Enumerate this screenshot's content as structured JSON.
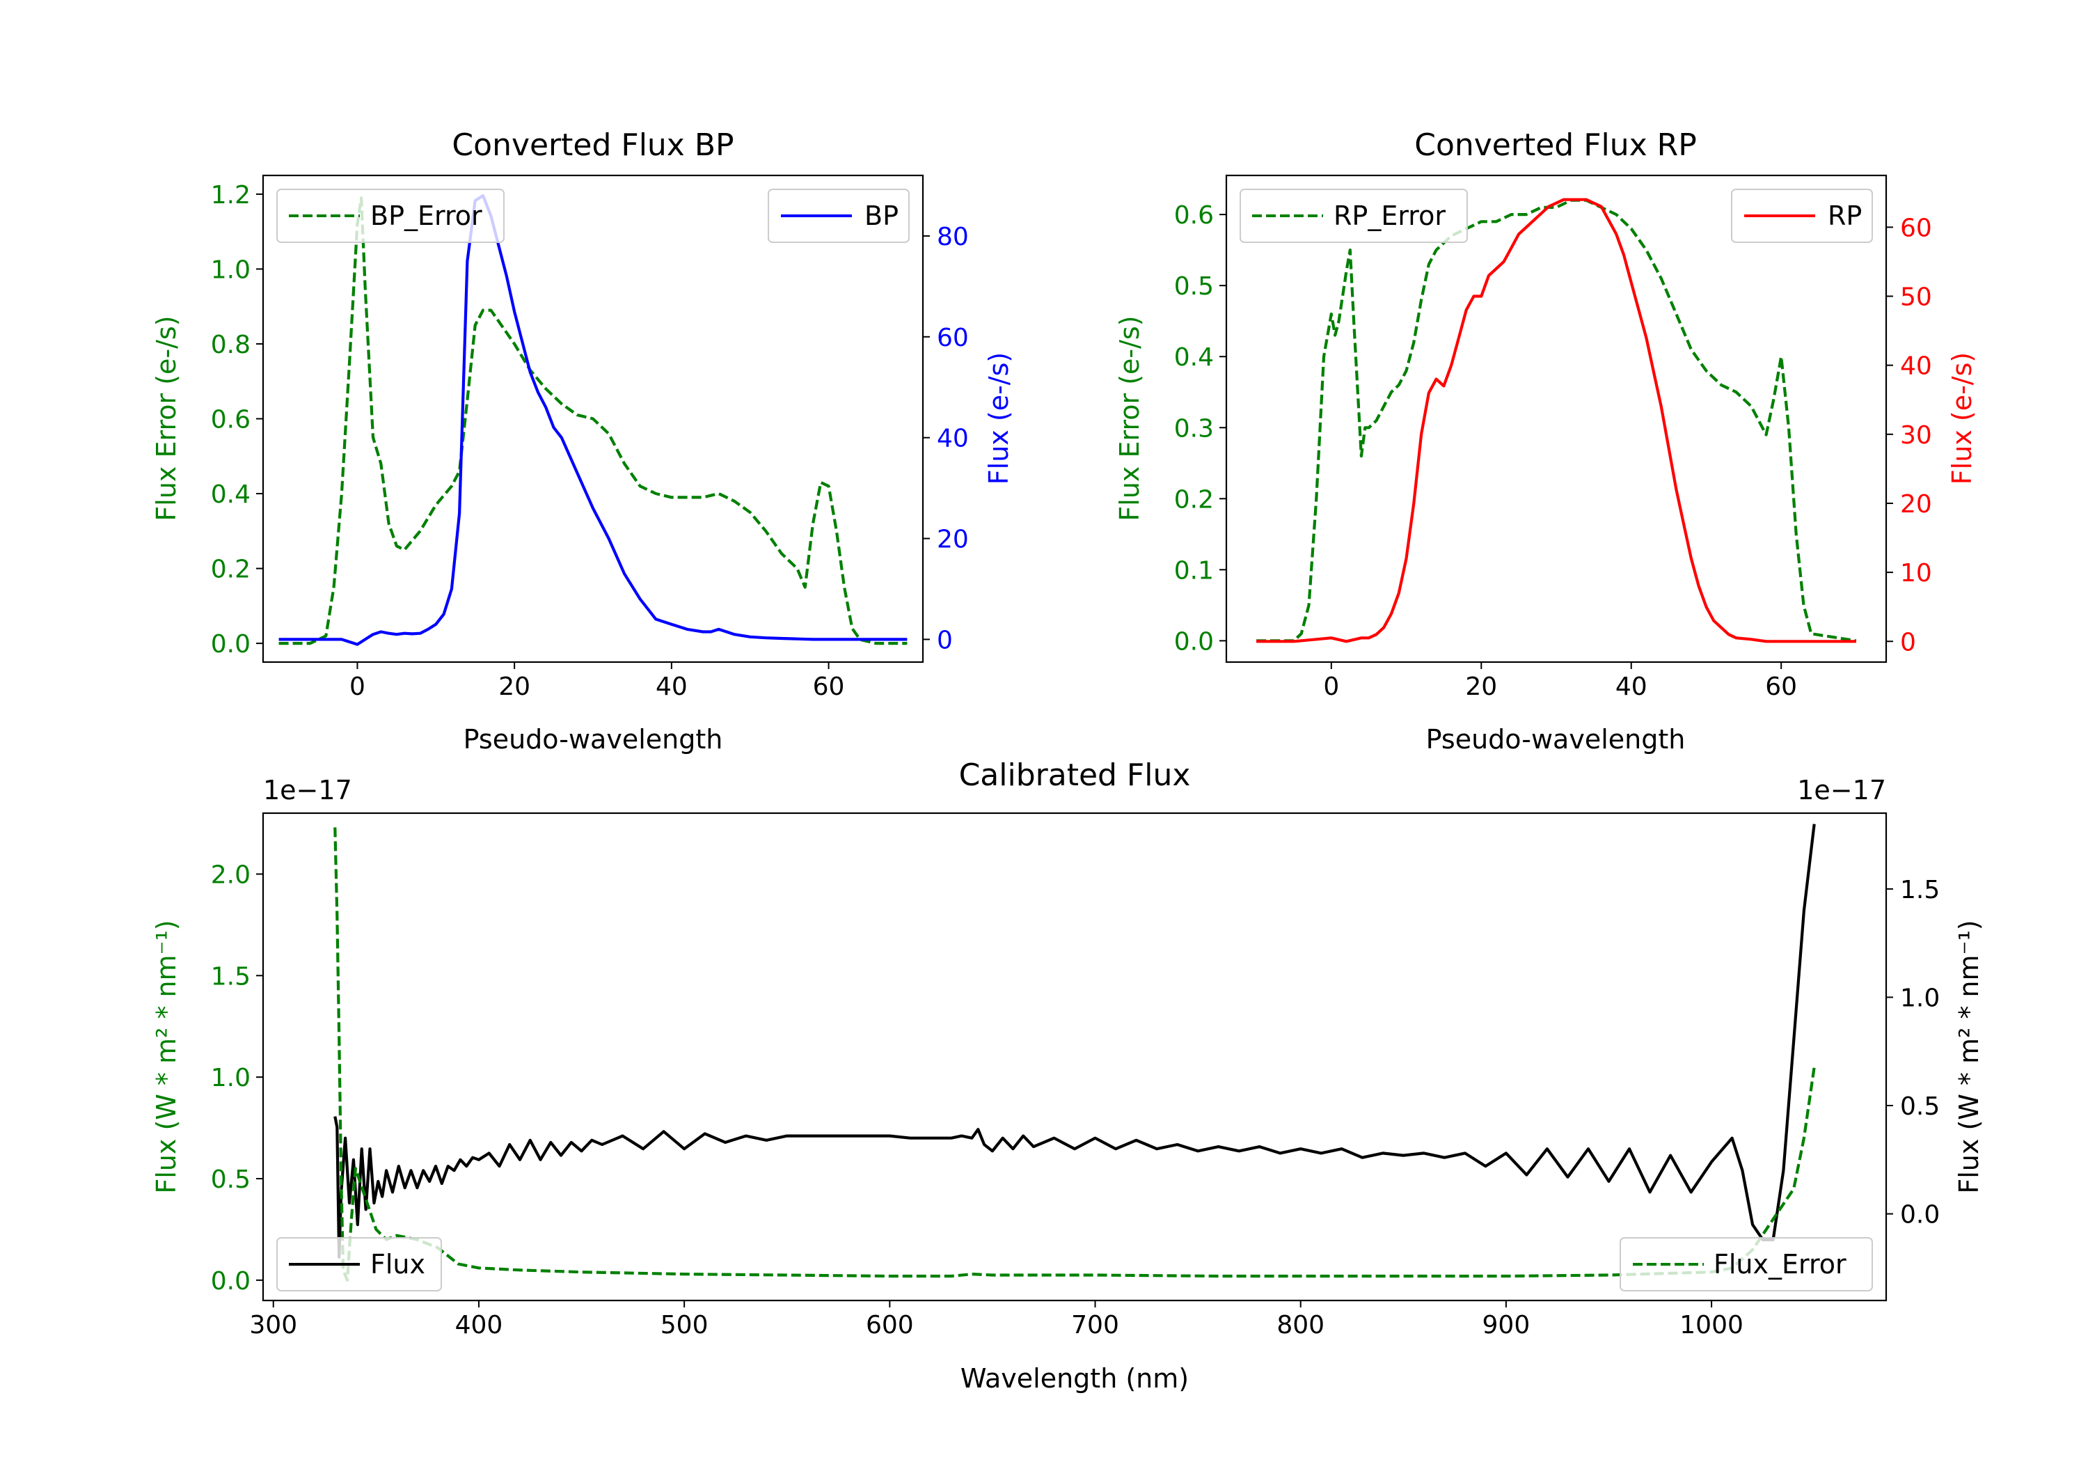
{
  "chart_data": [
    {
      "type": "line",
      "title": "Converted Flux BP",
      "xlabel": "Pseudo-wavelength",
      "ylabel_left": "Flux Error (e-/s)",
      "ylabel_right": "Flux (e-/s)",
      "xlim": [
        -12,
        72
      ],
      "ylim_left": [
        -0.05,
        1.25
      ],
      "ylim_right": [
        -4.5,
        92
      ],
      "x_ticks": [
        0,
        20,
        40,
        60
      ],
      "y_ticks_left": [
        "0.0",
        "0.2",
        "0.4",
        "0.6",
        "0.8",
        "1.0",
        "1.2"
      ],
      "y_ticks_right": [
        "0",
        "20",
        "40",
        "60",
        "80"
      ],
      "legend_left": "top-left",
      "legend_right": "top-right",
      "series": [
        {
          "name": "BP_Error",
          "axis": "left",
          "style": "dashed",
          "color": "#008000",
          "x": [
            -10,
            -6,
            -4,
            -3,
            -2,
            -1,
            0,
            0.5,
            1,
            2,
            3,
            4,
            5,
            6,
            8,
            10,
            12,
            13,
            14,
            15,
            16,
            17,
            18,
            20,
            22,
            24,
            26,
            28,
            30,
            32,
            34,
            36,
            38,
            40,
            42,
            44,
            46,
            48,
            50,
            52,
            54,
            56,
            57,
            58,
            59,
            60,
            61,
            62,
            63,
            64,
            66,
            70
          ],
          "values": [
            0,
            0,
            0.02,
            0.15,
            0.4,
            0.75,
            1.12,
            1.19,
            0.95,
            0.55,
            0.48,
            0.32,
            0.26,
            0.25,
            0.3,
            0.37,
            0.42,
            0.46,
            0.65,
            0.85,
            0.89,
            0.89,
            0.86,
            0.8,
            0.73,
            0.68,
            0.64,
            0.61,
            0.6,
            0.56,
            0.48,
            0.42,
            0.4,
            0.39,
            0.39,
            0.39,
            0.4,
            0.38,
            0.35,
            0.3,
            0.24,
            0.2,
            0.15,
            0.32,
            0.43,
            0.42,
            0.3,
            0.15,
            0.04,
            0.01,
            0,
            0
          ]
        },
        {
          "name": "BP",
          "axis": "right",
          "style": "solid",
          "color": "#0000ff",
          "x": [
            -10,
            -5,
            -2,
            0,
            1,
            2,
            3,
            4,
            5,
            6,
            7,
            8,
            9,
            10,
            11,
            12,
            13,
            14,
            15,
            16,
            17,
            18,
            19,
            20,
            21,
            22,
            23,
            24,
            25,
            26,
            28,
            30,
            32,
            34,
            36,
            38,
            40,
            42,
            44,
            45,
            46,
            47,
            48,
            50,
            52,
            54,
            56,
            58,
            60,
            70
          ],
          "values": [
            0,
            0,
            0,
            -1,
            0,
            1,
            1.5,
            1.2,
            1,
            1.2,
            1.1,
            1.2,
            2,
            3,
            5,
            10,
            25,
            75,
            87,
            88,
            84,
            78,
            72,
            65,
            59,
            53,
            49,
            46,
            42,
            40,
            33,
            26,
            20,
            13,
            8,
            4,
            3,
            2,
            1.5,
            1.5,
            2,
            1.5,
            1,
            0.5,
            0.3,
            0.2,
            0.1,
            0,
            0,
            0
          ]
        }
      ]
    },
    {
      "type": "line",
      "title": "Converted Flux RP",
      "xlabel": "Pseudo-wavelength",
      "ylabel_left": "Flux Error (e-/s)",
      "ylabel_right": "Flux (e-/s)",
      "xlim": [
        -14,
        74
      ],
      "ylim_left": [
        -0.03,
        0.655
      ],
      "ylim_right": [
        -3,
        67.5
      ],
      "x_ticks": [
        0,
        20,
        40,
        60
      ],
      "y_ticks_left": [
        "0.0",
        "0.1",
        "0.2",
        "0.3",
        "0.4",
        "0.5",
        "0.6"
      ],
      "y_ticks_right": [
        "0",
        "10",
        "20",
        "30",
        "40",
        "50",
        "60"
      ],
      "legend_left": "top-left",
      "legend_right": "top-right",
      "series": [
        {
          "name": "RP_Error",
          "axis": "left",
          "style": "dashed",
          "color": "#008000",
          "x": [
            -10,
            -5,
            -4,
            -3,
            -2,
            -1,
            0,
            0.5,
            1,
            2,
            2.5,
            3,
            4,
            4.5,
            5,
            6,
            7,
            8,
            9,
            10,
            11,
            12,
            13,
            14,
            16,
            18,
            20,
            22,
            24,
            26,
            28,
            30,
            32,
            34,
            36,
            38,
            40,
            42,
            44,
            46,
            48,
            50,
            52,
            54,
            55,
            56,
            57,
            58,
            59,
            60,
            61,
            62,
            63,
            64,
            70
          ],
          "values": [
            0,
            0,
            0.01,
            0.05,
            0.2,
            0.4,
            0.46,
            0.43,
            0.45,
            0.52,
            0.55,
            0.45,
            0.26,
            0.3,
            0.3,
            0.31,
            0.33,
            0.35,
            0.36,
            0.38,
            0.42,
            0.48,
            0.53,
            0.55,
            0.57,
            0.58,
            0.59,
            0.59,
            0.6,
            0.6,
            0.61,
            0.61,
            0.62,
            0.62,
            0.61,
            0.6,
            0.58,
            0.55,
            0.51,
            0.46,
            0.41,
            0.38,
            0.36,
            0.35,
            0.34,
            0.33,
            0.31,
            0.29,
            0.34,
            0.4,
            0.3,
            0.15,
            0.05,
            0.01,
            0
          ]
        },
        {
          "name": "RP",
          "axis": "right",
          "style": "solid",
          "color": "#ff0000",
          "x": [
            -10,
            -5,
            0,
            2,
            4,
            5,
            6,
            7,
            8,
            9,
            10,
            11,
            12,
            13,
            14,
            15,
            16,
            17,
            18,
            19,
            20,
            21,
            22,
            23,
            24,
            25,
            26,
            27,
            28,
            29,
            30,
            31,
            32,
            33,
            34,
            35,
            36,
            37,
            38,
            39,
            40,
            41,
            42,
            43,
            44,
            45,
            46,
            47,
            48,
            49,
            50,
            51,
            52,
            53,
            54,
            56,
            58,
            60,
            62,
            66,
            70
          ],
          "values": [
            0,
            0,
            0.5,
            0,
            0.5,
            0.5,
            1,
            2,
            4,
            7,
            12,
            20,
            30,
            36,
            38,
            37,
            40,
            44,
            48,
            50,
            50,
            53,
            54,
            55,
            57,
            59,
            60,
            61,
            62,
            63,
            63.5,
            64,
            64,
            64,
            64,
            63.5,
            63,
            61,
            59,
            56,
            52,
            48,
            44,
            39,
            34,
            28,
            22,
            17,
            12,
            8,
            5,
            3,
            2,
            1,
            0.5,
            0.3,
            0,
            0,
            0,
            0,
            0
          ]
        }
      ]
    },
    {
      "type": "line",
      "title": "Calibrated Flux",
      "xlabel": "Wavelength (nm)",
      "ylabel_left": "Flux (W * m² * nm⁻¹)",
      "ylabel_right": "Flux (W * m² * nm⁻¹)",
      "offset_left": "1e−17",
      "offset_right": "1e−17",
      "xlim": [
        295,
        1085
      ],
      "ylim_left": [
        -0.1,
        2.3
      ],
      "ylim_right": [
        -0.4,
        1.85
      ],
      "x_ticks": [
        300,
        400,
        500,
        600,
        700,
        800,
        900,
        1000
      ],
      "y_ticks_left": [
        "0.0",
        "0.5",
        "1.0",
        "1.5",
        "2.0"
      ],
      "y_ticks_right": [
        "0.0",
        "0.5",
        "1.0",
        "1.5"
      ],
      "legend_left": "bottom-left",
      "legend_right": "bottom-right",
      "series": [
        {
          "name": "Flux",
          "axis": "right",
          "style": "solid",
          "color": "#000000",
          "x": [
            330,
            331,
            332,
            333,
            335,
            337,
            339,
            341,
            343,
            345,
            347,
            349,
            351,
            353,
            355,
            358,
            361,
            364,
            367,
            370,
            373,
            376,
            379,
            382,
            385,
            388,
            391,
            394,
            397,
            400,
            405,
            410,
            415,
            420,
            425,
            430,
            435,
            440,
            445,
            450,
            455,
            460,
            470,
            480,
            490,
            500,
            510,
            520,
            530,
            540,
            550,
            560,
            570,
            580,
            590,
            600,
            610,
            620,
            630,
            635,
            640,
            643,
            646,
            650,
            655,
            660,
            665,
            670,
            680,
            690,
            700,
            710,
            720,
            730,
            740,
            750,
            760,
            770,
            780,
            790,
            800,
            810,
            820,
            830,
            840,
            850,
            860,
            870,
            880,
            890,
            900,
            910,
            920,
            930,
            940,
            950,
            960,
            970,
            980,
            990,
            1000,
            1010,
            1015,
            1020,
            1025,
            1030,
            1035,
            1040,
            1045,
            1050
          ],
          "values": [
            0.45,
            0.4,
            -0.2,
            0.1,
            0.35,
            0.05,
            0.25,
            -0.05,
            0.3,
            0.02,
            0.3,
            0.05,
            0.15,
            0.08,
            0.2,
            0.1,
            0.22,
            0.12,
            0.2,
            0.12,
            0.2,
            0.15,
            0.22,
            0.14,
            0.22,
            0.2,
            0.25,
            0.22,
            0.26,
            0.25,
            0.28,
            0.22,
            0.32,
            0.25,
            0.34,
            0.25,
            0.33,
            0.27,
            0.33,
            0.29,
            0.34,
            0.32,
            0.36,
            0.3,
            0.38,
            0.3,
            0.37,
            0.33,
            0.36,
            0.34,
            0.36,
            0.36,
            0.36,
            0.36,
            0.36,
            0.36,
            0.35,
            0.35,
            0.35,
            0.36,
            0.35,
            0.39,
            0.32,
            0.29,
            0.35,
            0.3,
            0.36,
            0.31,
            0.35,
            0.3,
            0.35,
            0.3,
            0.34,
            0.3,
            0.32,
            0.29,
            0.31,
            0.29,
            0.31,
            0.28,
            0.3,
            0.28,
            0.3,
            0.26,
            0.28,
            0.27,
            0.28,
            0.26,
            0.28,
            0.22,
            0.28,
            0.18,
            0.3,
            0.17,
            0.3,
            0.15,
            0.3,
            0.1,
            0.27,
            0.1,
            0.24,
            0.35,
            0.2,
            -0.05,
            -0.12,
            -0.12,
            0.2,
            0.8,
            1.4,
            1.8
          ]
        },
        {
          "name": "Flux_Error",
          "axis": "left",
          "style": "dashed",
          "color": "#008000",
          "x": [
            330,
            331,
            332,
            333,
            334,
            336,
            338,
            340,
            345,
            350,
            355,
            360,
            370,
            380,
            390,
            400,
            420,
            450,
            500,
            550,
            600,
            630,
            640,
            650,
            700,
            760,
            800,
            850,
            900,
            950,
            1000,
            1010,
            1020,
            1030,
            1040,
            1045,
            1050
          ],
          "values": [
            2.23,
            1.8,
            1.2,
            0.5,
            0.05,
            0.0,
            0.3,
            0.55,
            0.4,
            0.25,
            0.2,
            0.22,
            0.2,
            0.16,
            0.08,
            0.06,
            0.05,
            0.04,
            0.03,
            0.025,
            0.02,
            0.02,
            0.03,
            0.025,
            0.025,
            0.02,
            0.02,
            0.02,
            0.02,
            0.025,
            0.04,
            0.06,
            0.15,
            0.3,
            0.45,
            0.7,
            1.05
          ]
        }
      ]
    }
  ]
}
